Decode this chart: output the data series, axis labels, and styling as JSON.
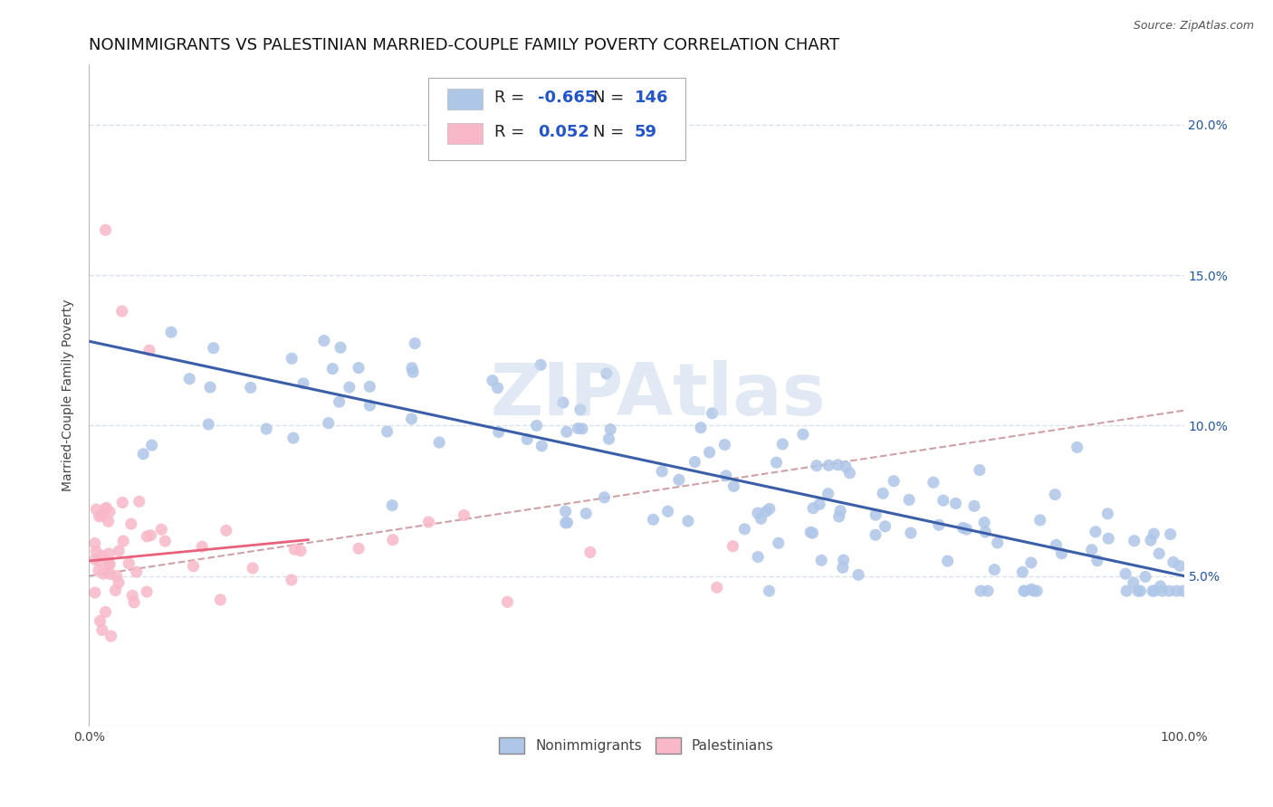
{
  "title": "NONIMMIGRANTS VS PALESTINIAN MARRIED-COUPLE FAMILY POVERTY CORRELATION CHART",
  "source": "Source: ZipAtlas.com",
  "ylabel": "Married-Couple Family Poverty",
  "xlim": [
    0,
    100
  ],
  "ylim": [
    0,
    22
  ],
  "yticks_right": [
    5,
    10,
    15,
    20
  ],
  "legend_entries": [
    {
      "label": "Nonimmigrants",
      "color": "#aec6e8",
      "R": "-0.665",
      "N": "146"
    },
    {
      "label": "Palestinians",
      "color": "#f9b8c8",
      "R": "0.052",
      "N": "59"
    }
  ],
  "blue_scatter_color": "#aec6e8",
  "pink_scatter_color": "#f9b8c8",
  "blue_line_color": "#3a5fa8",
  "pink_line_color": "#e8607a",
  "dashed_line_color": "#d0a0a8",
  "grid_color": "#d8e0ec",
  "background_color": "#ffffff",
  "title_fontsize": 13,
  "axis_label_fontsize": 10,
  "tick_fontsize": 10,
  "legend_fontsize": 13,
  "watermark_text": "ZIPAtlas",
  "blue_line_x": [
    0,
    100
  ],
  "blue_line_y": [
    12.8,
    5.0
  ],
  "pink_line_x": [
    0,
    20
  ],
  "pink_line_y": [
    5.5,
    6.2
  ],
  "dashed_line_x": [
    0,
    100
  ],
  "dashed_line_y": [
    5.0,
    10.5
  ]
}
